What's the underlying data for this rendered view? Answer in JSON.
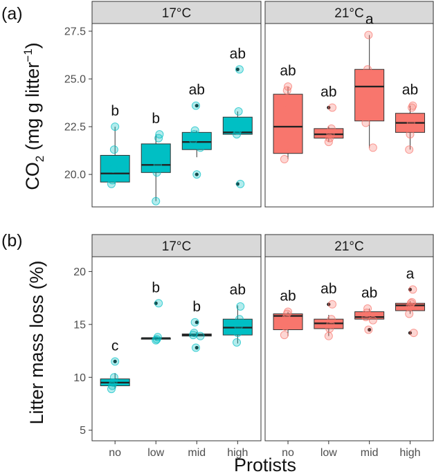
{
  "chart_data": [
    {
      "panel_tag": "(a)",
      "type": "box",
      "ylabel_main": "CO",
      "ylabel_sub": "2",
      "ylabel_rest": " (mg g litter",
      "ylabel_sup": "−1",
      "ylabel_end": ")",
      "ylim": [
        18.3,
        27.9
      ],
      "yticks": [
        20.0,
        22.5,
        25.0,
        27.5
      ],
      "ytick_labels": [
        "20.0",
        "22.5",
        "25.0",
        "27.5"
      ],
      "facets": [
        {
          "label": "17°C",
          "color": "#00BFC4",
          "groups": [
            {
              "category": "no",
              "q1": 19.6,
              "median": 20.05,
              "q3": 21.0,
              "whisker_low": 19.5,
              "whisker_high": 22.5,
              "points": [
                19.5,
                19.7,
                20.3,
                21.3,
                22.5
              ],
              "outliers": [],
              "sig": "b"
            },
            {
              "category": "low",
              "q1": 20.1,
              "median": 20.5,
              "q3": 21.6,
              "whisker_low": 18.6,
              "whisker_high": 22.1,
              "points": [
                18.6,
                20.1,
                20.5,
                21.9,
                22.1
              ],
              "outliers": [],
              "sig": "b"
            },
            {
              "category": "mid",
              "q1": 21.3,
              "median": 21.7,
              "q3": 22.2,
              "whisker_low": 20.9,
              "whisker_high": 22.3,
              "points": [
                21.4,
                21.8,
                22.1,
                22.3,
                23.6,
                20.0
              ],
              "outliers": [
                23.6,
                20.0
              ],
              "sig": "ab"
            },
            {
              "category": "high",
              "q1": 22.1,
              "median": 22.2,
              "q3": 23.0,
              "whisker_low": 22.1,
              "whisker_high": 23.3,
              "points": [
                22.1,
                22.3,
                23.3,
                25.5,
                19.5
              ],
              "outliers": [
                25.5,
                19.5
              ],
              "sig": "ab"
            }
          ]
        },
        {
          "label": "21°C",
          "color": "#F8766D",
          "groups": [
            {
              "category": "no",
              "q1": 21.1,
              "median": 22.5,
              "q3": 24.2,
              "whisker_low": 20.8,
              "whisker_high": 24.6,
              "points": [
                20.8,
                21.5,
                23.4,
                24.4,
                24.6
              ],
              "outliers": [],
              "sig": "ab"
            },
            {
              "category": "low",
              "q1": 21.9,
              "median": 22.1,
              "q3": 22.4,
              "whisker_low": 21.7,
              "whisker_high": 22.5,
              "points": [
                21.7,
                21.9,
                22.1,
                22.4,
                23.5
              ],
              "outliers": [
                23.5
              ],
              "sig": "ab"
            },
            {
              "category": "mid",
              "q1": 22.8,
              "median": 24.6,
              "q3": 25.5,
              "whisker_low": 21.4,
              "whisker_high": 27.3,
              "points": [
                21.4,
                22.7,
                24.0,
                25.5,
                27.3
              ],
              "outliers": [],
              "sig": "a"
            },
            {
              "category": "high",
              "q1": 22.2,
              "median": 22.7,
              "q3": 23.2,
              "whisker_low": 21.3,
              "whisker_high": 23.6,
              "points": [
                21.3,
                22.1,
                22.7,
                23.5,
                23.6
              ],
              "outliers": [],
              "sig": "ab"
            }
          ]
        }
      ]
    },
    {
      "panel_tag": "(b)",
      "type": "box",
      "ylabel_main": "Litter mass loss (%)",
      "ylim": [
        4.0,
        21.4
      ],
      "yticks": [
        5,
        10,
        15,
        20
      ],
      "ytick_labels": [
        "5",
        "10",
        "15",
        "20"
      ],
      "xlabel": "Protists",
      "categories": [
        "no",
        "low",
        "mid",
        "high"
      ],
      "facets": [
        {
          "label": "17°C",
          "color": "#00BFC4",
          "groups": [
            {
              "category": "no",
              "q1": 9.2,
              "median": 9.5,
              "q3": 9.85,
              "whisker_low": 8.9,
              "whisker_high": 10.4,
              "points": [
                8.9,
                9.2,
                9.5,
                10.0,
                11.5
              ],
              "outliers": [
                11.5
              ],
              "sig": "c"
            },
            {
              "category": "low",
              "q1": 13.6,
              "median": 13.7,
              "q3": 13.7,
              "whisker_low": 13.5,
              "whisker_high": 13.8,
              "points": [
                13.5,
                13.6,
                13.8,
                17.0
              ],
              "outliers": [
                17.0
              ],
              "sig": "b"
            },
            {
              "category": "mid",
              "q1": 13.9,
              "median": 14.0,
              "q3": 14.1,
              "whisker_low": 13.8,
              "whisker_high": 14.3,
              "points": [
                13.9,
                14.0,
                14.2,
                15.2,
                12.8
              ],
              "outliers": [
                15.2,
                12.8
              ],
              "sig": "b"
            },
            {
              "category": "high",
              "q1": 14.0,
              "median": 14.7,
              "q3": 15.5,
              "whisker_low": 13.2,
              "whisker_high": 16.8,
              "points": [
                13.3,
                14.2,
                14.8,
                15.5,
                16.7
              ],
              "outliers": [],
              "sig": "ab"
            }
          ]
        },
        {
          "label": "21°C",
          "color": "#F8766D",
          "groups": [
            {
              "category": "no",
              "q1": 14.5,
              "median": 15.8,
              "q3": 16.0,
              "whisker_low": 13.9,
              "whisker_high": 16.2,
              "points": [
                14.0,
                14.8,
                15.6,
                16.0,
                16.2
              ],
              "outliers": [],
              "sig": "ab"
            },
            {
              "category": "low",
              "q1": 14.6,
              "median": 15.1,
              "q3": 15.5,
              "whisker_low": 13.9,
              "whisker_high": 15.9,
              "points": [
                13.9,
                14.6,
                15.0,
                15.5,
                16.9
              ],
              "outliers": [
                16.9
              ],
              "sig": "ab"
            },
            {
              "category": "mid",
              "q1": 15.5,
              "median": 15.7,
              "q3": 16.2,
              "whisker_low": 15.4,
              "whisker_high": 16.5,
              "points": [
                15.4,
                15.7,
                16.1,
                16.5,
                14.5
              ],
              "outliers": [
                14.5
              ],
              "sig": "ab"
            },
            {
              "category": "high",
              "q1": 16.3,
              "median": 16.8,
              "q3": 17.0,
              "whisker_low": 16.0,
              "whisker_high": 17.2,
              "points": [
                16.0,
                16.7,
                17.0,
                17.1,
                18.3,
                14.2
              ],
              "outliers": [
                18.3,
                14.2
              ],
              "sig": "a"
            }
          ]
        }
      ]
    }
  ]
}
